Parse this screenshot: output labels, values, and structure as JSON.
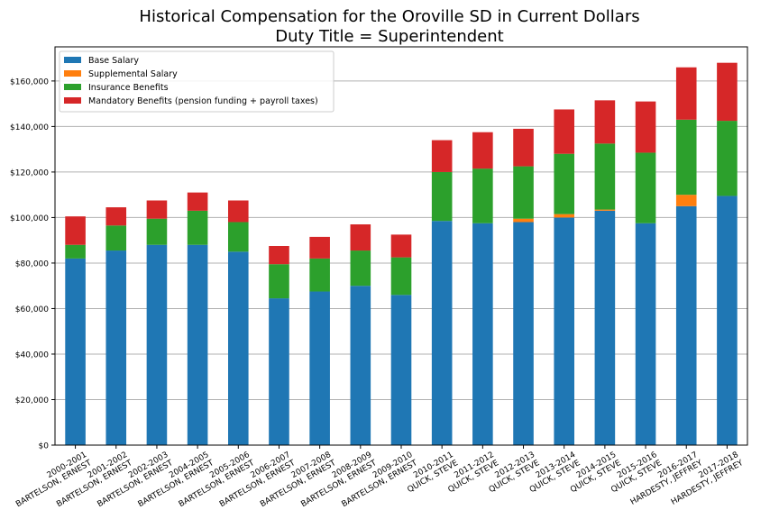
{
  "chart_data": {
    "type": "bar",
    "stacked": true,
    "title_lines": [
      "Historical Compensation for the Oroville SD in Current Dollars",
      "Duty Title = Superintendent"
    ],
    "xlabel": "",
    "ylabel": "",
    "ylim": [
      0,
      175000
    ],
    "yticks": [
      0,
      20000,
      40000,
      60000,
      80000,
      100000,
      120000,
      140000,
      160000
    ],
    "ytick_labels": [
      "$0",
      "$20,000",
      "$40,000",
      "$60,000",
      "$80,000",
      "$100,000",
      "$120,000",
      "$140,000",
      "$160,000"
    ],
    "grid": "horizontal",
    "legend_position": "top-left",
    "categories": [
      [
        "2000-2001",
        "BARTELSON, ERNEST"
      ],
      [
        "2001-2002",
        "BARTELSON, ERNEST"
      ],
      [
        "2002-2003",
        "BARTELSON, ERNEST"
      ],
      [
        "2004-2005",
        "BARTELSON, ERNEST"
      ],
      [
        "2005-2006",
        "BARTELSON, ERNEST"
      ],
      [
        "2006-2007",
        "BARTELSON, ERNEST"
      ],
      [
        "2007-2008",
        "BARTELSON, ERNEST"
      ],
      [
        "2008-2009",
        "BARTELSON, ERNEST"
      ],
      [
        "2009-2010",
        "BARTELSON, ERNEST"
      ],
      [
        "2010-2011",
        "QUICK, STEVE"
      ],
      [
        "2011-2012",
        "QUICK, STEVE"
      ],
      [
        "2012-2013",
        "QUICK, STEVE"
      ],
      [
        "2013-2014",
        "QUICK, STEVE"
      ],
      [
        "2014-2015",
        "QUICK, STEVE"
      ],
      [
        "2015-2016",
        "QUICK, STEVE"
      ],
      [
        "2016-2017",
        "HARDESTY, JEFFREY"
      ],
      [
        "2017-2018",
        "HARDESTY, JEFFREY"
      ]
    ],
    "series": [
      {
        "name": "Base Salary",
        "color": "#1f77b4",
        "values": [
          82000,
          85500,
          88000,
          88000,
          85000,
          64500,
          67500,
          70000,
          66000,
          98500,
          97500,
          98000,
          100000,
          103000,
          97500,
          105000,
          109500
        ]
      },
      {
        "name": "Supplemental Salary",
        "color": "#ff7f0e",
        "values": [
          0,
          0,
          0,
          0,
          0,
          0,
          0,
          0,
          0,
          0,
          0,
          1500,
          1500,
          500,
          0,
          5000,
          0
        ]
      },
      {
        "name": "Insurance Benefits",
        "color": "#2ca02c",
        "values": [
          6000,
          11000,
          11500,
          15000,
          13000,
          15000,
          14500,
          15500,
          16500,
          21500,
          24000,
          23000,
          26500,
          29000,
          31000,
          33000,
          33000
        ]
      },
      {
        "name": "Mandatory Benefits (pension funding + payroll taxes)",
        "color": "#d62728",
        "values": [
          12500,
          8000,
          8000,
          8000,
          9500,
          8000,
          9500,
          11500,
          10000,
          14000,
          16000,
          16500,
          19500,
          19000,
          22500,
          23000,
          25500
        ]
      }
    ]
  }
}
